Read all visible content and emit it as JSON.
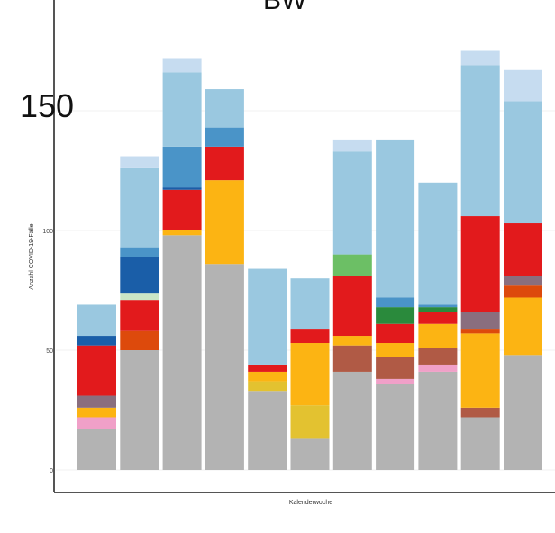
{
  "chart_data": {
    "type": "bar",
    "stacked": true,
    "title": "BW",
    "xlabel": "Kalenderwoche",
    "ylabel": "Anzahl COVID-19-Fälle",
    "ylim": [
      0,
      190
    ],
    "yticks": [
      0,
      50,
      100,
      150
    ],
    "highlighted_tick_label": "150",
    "grid": true,
    "legend": "none",
    "categories": [
      "",
      "",
      "",
      "",
      "",
      "",
      "",
      "",
      "",
      "",
      "",
      ""
    ],
    "series": [
      {
        "color": "#b3b3b3",
        "values": [
          17,
          50,
          98,
          86,
          33,
          13,
          41,
          36,
          41,
          22,
          48,
          0
        ]
      },
      {
        "color": "#e3c230",
        "values": [
          0,
          0,
          0,
          0,
          4,
          14,
          0,
          0,
          0,
          0,
          0,
          0
        ]
      },
      {
        "color": "#f0a0c8",
        "values": [
          5,
          0,
          0,
          0,
          0,
          0,
          0,
          2,
          3,
          0,
          0,
          0
        ]
      },
      {
        "color": "#b05a45",
        "values": [
          0,
          0,
          0,
          0,
          0,
          0,
          11,
          9,
          7,
          4,
          0,
          0
        ]
      },
      {
        "color": "#fcb413",
        "values": [
          4,
          0,
          2,
          35,
          4,
          26,
          4,
          6,
          10,
          31,
          24,
          0
        ]
      },
      {
        "color": "#dd4a0c",
        "values": [
          0,
          8,
          0,
          0,
          0,
          0,
          0,
          0,
          0,
          2,
          5,
          0
        ]
      },
      {
        "color": "#8a6e7e",
        "values": [
          5,
          0,
          0,
          0,
          0,
          0,
          0,
          0,
          0,
          7,
          4,
          0
        ]
      },
      {
        "color": "#e21a1c",
        "values": [
          21,
          13,
          17,
          14,
          3,
          6,
          25,
          8,
          5,
          40,
          22,
          0
        ]
      },
      {
        "color": "#2a8a3c",
        "values": [
          0,
          0,
          0,
          0,
          0,
          0,
          0,
          7,
          2,
          0,
          0,
          0
        ]
      },
      {
        "color": "#6cbf65",
        "values": [
          0,
          0,
          0,
          0,
          0,
          0,
          9,
          0,
          0,
          0,
          0,
          0
        ]
      },
      {
        "color": "#cbe6c6",
        "values": [
          0,
          3,
          0,
          0,
          0,
          0,
          0,
          0,
          0,
          0,
          0,
          0
        ]
      },
      {
        "color": "#1a5ea8",
        "values": [
          4,
          15,
          1,
          0,
          0,
          0,
          0,
          0,
          0,
          0,
          0,
          0
        ]
      },
      {
        "color": "#4a94c8",
        "values": [
          0,
          4,
          17,
          8,
          0,
          0,
          0,
          4,
          1,
          0,
          0,
          0
        ]
      },
      {
        "color": "#9ac8e0",
        "values": [
          13,
          33,
          31,
          16,
          40,
          21,
          43,
          66,
          51,
          63,
          51,
          0
        ]
      },
      {
        "color": "#c6dcf0",
        "values": [
          0,
          5,
          6,
          0,
          0,
          0,
          5,
          0,
          0,
          6,
          13,
          0
        ]
      }
    ]
  }
}
